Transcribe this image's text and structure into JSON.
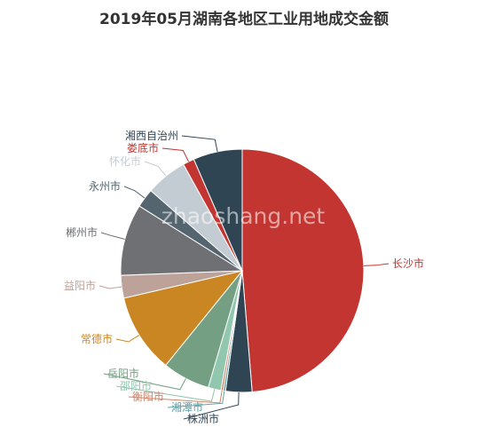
{
  "title": "2019年05月湖南各地区工业用地成交金额",
  "watermark": "zhaoshang.net",
  "chart_data": {
    "type": "pie",
    "title": "2019年05月湖南各地区工业用地成交金额",
    "slices": [
      {
        "label": "长沙市",
        "value": 48.5,
        "color": "#c23531"
      },
      {
        "label": "株洲市",
        "value": 3.5,
        "color": "#2f4554"
      },
      {
        "label": "湘潭市",
        "value": 0.3,
        "color": "#61a0a8"
      },
      {
        "label": "衡阳市",
        "value": 0.3,
        "color": "#d48265"
      },
      {
        "label": "邵阳市",
        "value": 1.7,
        "color": "#91c7ae"
      },
      {
        "label": "岳阳市",
        "value": 6.3,
        "color": "#749f83"
      },
      {
        "label": "常德市",
        "value": 10.5,
        "color": "#ca8622"
      },
      {
        "label": "益阳市",
        "value": 3.0,
        "color": "#bda29a"
      },
      {
        "label": "郴州市",
        "value": 9.5,
        "color": "#6e7074"
      },
      {
        "label": "永州市",
        "value": 2.5,
        "color": "#546570"
      },
      {
        "label": "怀化市",
        "value": 5.5,
        "color": "#c4ccd3"
      },
      {
        "label": "娄底市",
        "value": 1.5,
        "color": "#c23531"
      },
      {
        "label": "湘西自治州",
        "value": 6.5,
        "color": "#2f4554"
      }
    ]
  }
}
